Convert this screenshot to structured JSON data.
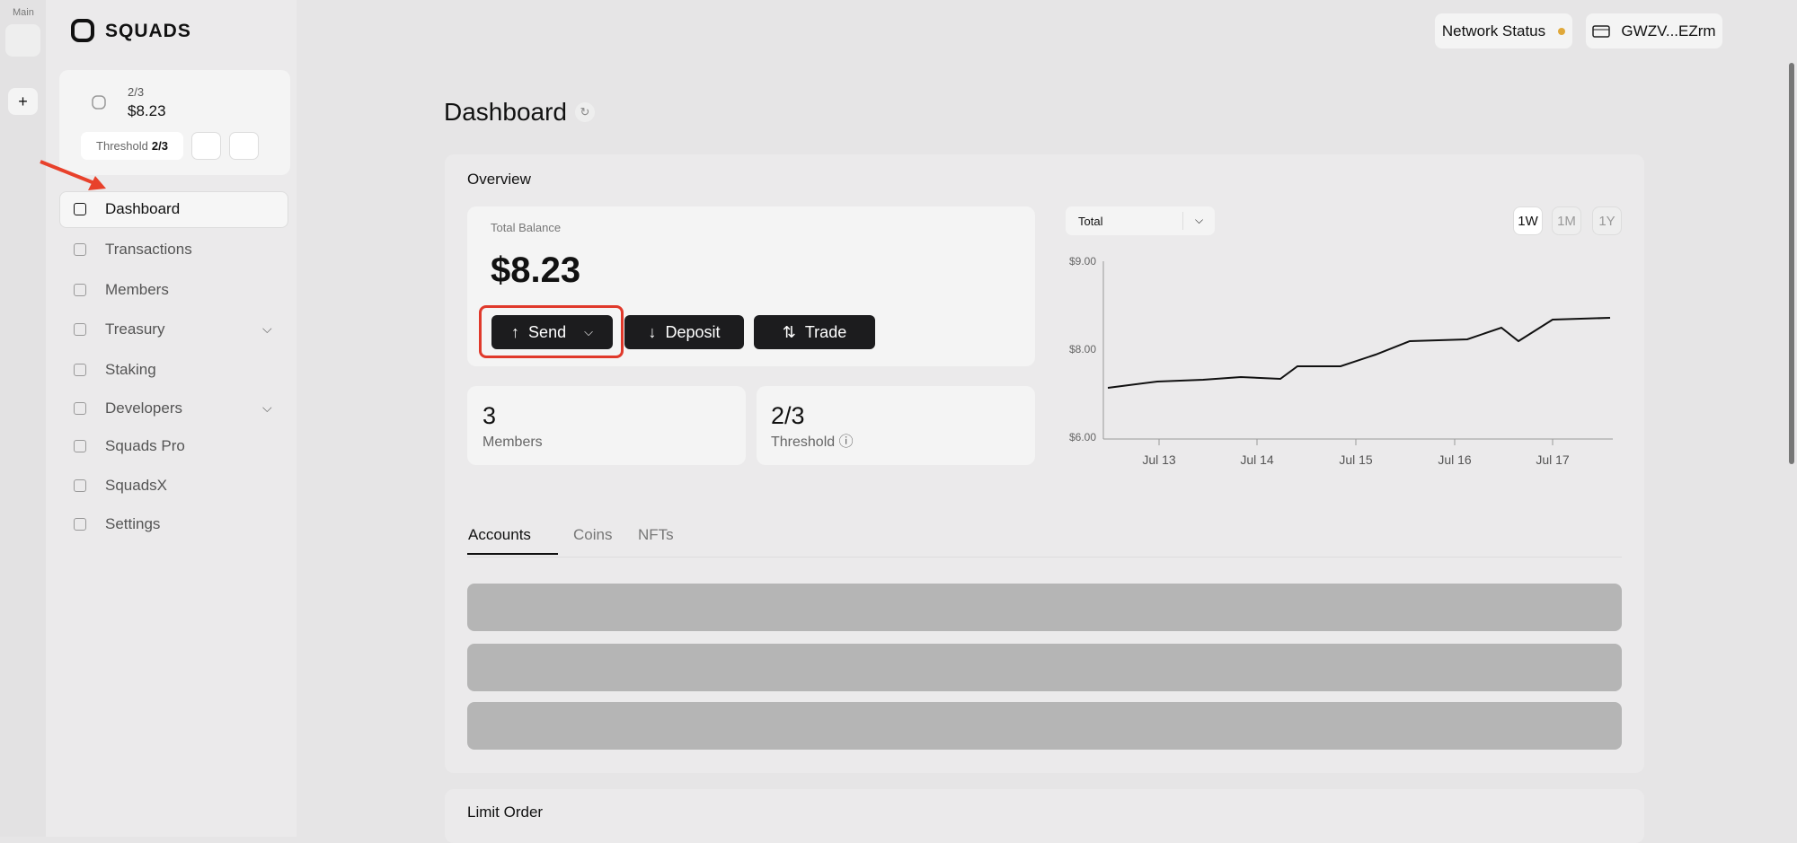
{
  "sidebar": {
    "workspace_label": "Main",
    "brand": "SQUADS",
    "account": {
      "ratio": "2/3",
      "balance": "$8.23",
      "threshold_label": "Threshold",
      "threshold_value": "2/3"
    },
    "nav": [
      "Dashboard",
      "Transactions",
      "Members",
      "Treasury",
      "Staking",
      "Developers",
      "Squads Pro",
      "SquadsX",
      "Settings"
    ]
  },
  "header": {
    "network_status": "Network Status",
    "wallet": "GWZV...EZrm"
  },
  "dashboard": {
    "title": "Dashboard",
    "overview": {
      "title": "Overview",
      "balance_label": "Total Balance",
      "balance": "$8.23",
      "buttons": [
        "Send",
        "Deposit",
        "Trade"
      ],
      "members_count": "3",
      "members_label": "Members",
      "threshold_count": "2/3",
      "threshold_label": "Threshold",
      "chart": {
        "select": "Total",
        "ranges": [
          "1W",
          "1M",
          "1Y"
        ],
        "y_labels": [
          "$9.00",
          "$8.00",
          "$6.00"
        ],
        "x_labels": [
          "Jul 13",
          "Jul 14",
          "Jul 15",
          "Jul 16",
          "Jul 17"
        ]
      },
      "tabs": [
        "Accounts",
        "Coins",
        "NFTs"
      ]
    },
    "limit_order": "Limit Order"
  }
}
